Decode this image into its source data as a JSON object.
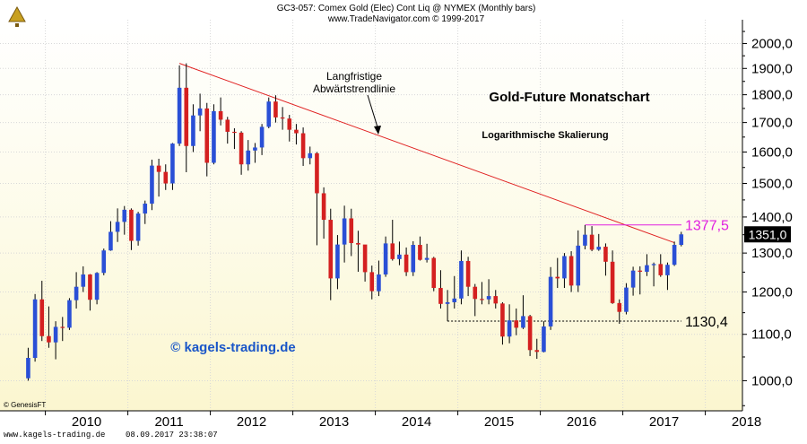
{
  "header": {
    "line1": "GC3-057:  Comex Gold (Elec) Cont Liq @ NYMEX  (Monthly bars)",
    "line2": "www.TradeNavigator.com © 1999-2017"
  },
  "footer": {
    "site": "www.kagels-trading.de",
    "timestamp": "08.09.2017 23:38:07",
    "source": "© GenesisFT"
  },
  "colors": {
    "up": "#2a4fd6",
    "down": "#d42020",
    "trendline": "#e02020",
    "marker_magenta": "#e020e0",
    "watermark": "#1a56c8"
  },
  "chart_data": {
    "type": "candlestick",
    "title": "Gold-Future Monatschart",
    "subtitle": "Logarithmische Skalierung",
    "watermark": "© kagels-trading.de",
    "y_scale": "log",
    "ylim": [
      940,
      2100
    ],
    "xlim": [
      2009.45,
      2018.45
    ],
    "x_ticks": [
      "2010",
      "2011",
      "2012",
      "2013",
      "2014",
      "2015",
      "2016",
      "2017",
      "2018"
    ],
    "y_ticks": [
      "2000,0",
      "1900,0",
      "1800,0",
      "1700,0",
      "1600,0",
      "1500,0",
      "1400,0",
      "1300,0",
      "1200,0",
      "1100,0",
      "1000,0"
    ],
    "last_price_label": "1351,0",
    "candles": [
      {
        "date": "2009-10",
        "o": 1005,
        "h": 1070,
        "l": 1000,
        "c": 1048
      },
      {
        "date": "2009-11",
        "o": 1048,
        "h": 1195,
        "l": 1040,
        "c": 1182
      },
      {
        "date": "2009-12",
        "o": 1182,
        "h": 1228,
        "l": 1085,
        "c": 1096
      },
      {
        "date": "2010-01",
        "o": 1096,
        "h": 1165,
        "l": 1070,
        "c": 1082
      },
      {
        "date": "2010-02",
        "o": 1082,
        "h": 1130,
        "l": 1045,
        "c": 1117
      },
      {
        "date": "2010-03",
        "o": 1117,
        "h": 1140,
        "l": 1085,
        "c": 1115
      },
      {
        "date": "2010-04",
        "o": 1115,
        "h": 1185,
        "l": 1110,
        "c": 1180
      },
      {
        "date": "2010-05",
        "o": 1180,
        "h": 1250,
        "l": 1160,
        "c": 1213
      },
      {
        "date": "2010-06",
        "o": 1213,
        "h": 1265,
        "l": 1200,
        "c": 1244
      },
      {
        "date": "2010-07",
        "o": 1244,
        "h": 1245,
        "l": 1155,
        "c": 1181
      },
      {
        "date": "2010-08",
        "o": 1181,
        "h": 1250,
        "l": 1170,
        "c": 1248
      },
      {
        "date": "2010-09",
        "o": 1248,
        "h": 1312,
        "l": 1242,
        "c": 1307
      },
      {
        "date": "2010-10",
        "o": 1307,
        "h": 1388,
        "l": 1306,
        "c": 1358
      },
      {
        "date": "2010-11",
        "o": 1358,
        "h": 1425,
        "l": 1330,
        "c": 1386
      },
      {
        "date": "2010-12",
        "o": 1386,
        "h": 1432,
        "l": 1350,
        "c": 1421
      },
      {
        "date": "2011-01",
        "o": 1421,
        "h": 1425,
        "l": 1308,
        "c": 1333
      },
      {
        "date": "2011-02",
        "o": 1333,
        "h": 1415,
        "l": 1320,
        "c": 1410
      },
      {
        "date": "2011-03",
        "o": 1410,
        "h": 1448,
        "l": 1380,
        "c": 1439
      },
      {
        "date": "2011-04",
        "o": 1439,
        "h": 1575,
        "l": 1420,
        "c": 1556
      },
      {
        "date": "2011-05",
        "o": 1556,
        "h": 1578,
        "l": 1460,
        "c": 1536
      },
      {
        "date": "2011-06",
        "o": 1536,
        "h": 1560,
        "l": 1480,
        "c": 1500
      },
      {
        "date": "2011-07",
        "o": 1500,
        "h": 1630,
        "l": 1480,
        "c": 1628
      },
      {
        "date": "2011-08",
        "o": 1628,
        "h": 1912,
        "l": 1620,
        "c": 1826
      },
      {
        "date": "2011-09",
        "o": 1826,
        "h": 1920,
        "l": 1535,
        "c": 1620
      },
      {
        "date": "2011-10",
        "o": 1620,
        "h": 1765,
        "l": 1600,
        "c": 1725
      },
      {
        "date": "2011-11",
        "o": 1725,
        "h": 1804,
        "l": 1670,
        "c": 1750
      },
      {
        "date": "2011-12",
        "o": 1750,
        "h": 1770,
        "l": 1522,
        "c": 1565
      },
      {
        "date": "2012-01",
        "o": 1565,
        "h": 1765,
        "l": 1560,
        "c": 1740
      },
      {
        "date": "2012-02",
        "o": 1740,
        "h": 1790,
        "l": 1690,
        "c": 1710
      },
      {
        "date": "2012-03",
        "o": 1710,
        "h": 1720,
        "l": 1628,
        "c": 1668
      },
      {
        "date": "2012-04",
        "o": 1668,
        "h": 1680,
        "l": 1610,
        "c": 1665
      },
      {
        "date": "2012-05",
        "o": 1665,
        "h": 1670,
        "l": 1527,
        "c": 1560
      },
      {
        "date": "2012-06",
        "o": 1560,
        "h": 1640,
        "l": 1540,
        "c": 1605
      },
      {
        "date": "2012-07",
        "o": 1605,
        "h": 1630,
        "l": 1565,
        "c": 1615
      },
      {
        "date": "2012-08",
        "o": 1615,
        "h": 1695,
        "l": 1590,
        "c": 1685
      },
      {
        "date": "2012-09",
        "o": 1685,
        "h": 1790,
        "l": 1680,
        "c": 1775
      },
      {
        "date": "2012-10",
        "o": 1775,
        "h": 1798,
        "l": 1700,
        "c": 1718
      },
      {
        "date": "2012-11",
        "o": 1718,
        "h": 1755,
        "l": 1675,
        "c": 1714
      },
      {
        "date": "2012-12",
        "o": 1714,
        "h": 1727,
        "l": 1635,
        "c": 1675
      },
      {
        "date": "2013-01",
        "o": 1675,
        "h": 1695,
        "l": 1625,
        "c": 1663
      },
      {
        "date": "2013-02",
        "o": 1663,
        "h": 1683,
        "l": 1555,
        "c": 1580
      },
      {
        "date": "2013-03",
        "o": 1580,
        "h": 1618,
        "l": 1560,
        "c": 1596
      },
      {
        "date": "2013-04",
        "o": 1596,
        "h": 1600,
        "l": 1321,
        "c": 1470
      },
      {
        "date": "2013-05",
        "o": 1470,
        "h": 1488,
        "l": 1339,
        "c": 1392
      },
      {
        "date": "2013-06",
        "o": 1392,
        "h": 1424,
        "l": 1180,
        "c": 1234
      },
      {
        "date": "2013-07",
        "o": 1234,
        "h": 1349,
        "l": 1207,
        "c": 1323
      },
      {
        "date": "2013-08",
        "o": 1323,
        "h": 1433,
        "l": 1275,
        "c": 1396
      },
      {
        "date": "2013-09",
        "o": 1396,
        "h": 1424,
        "l": 1292,
        "c": 1327
      },
      {
        "date": "2013-10",
        "o": 1327,
        "h": 1361,
        "l": 1251,
        "c": 1323
      },
      {
        "date": "2013-11",
        "o": 1323,
        "h": 1321,
        "l": 1226,
        "c": 1250
      },
      {
        "date": "2013-12",
        "o": 1250,
        "h": 1267,
        "l": 1182,
        "c": 1202
      },
      {
        "date": "2014-01",
        "o": 1202,
        "h": 1280,
        "l": 1190,
        "c": 1244
      },
      {
        "date": "2014-02",
        "o": 1244,
        "h": 1345,
        "l": 1238,
        "c": 1326
      },
      {
        "date": "2014-03",
        "o": 1326,
        "h": 1392,
        "l": 1280,
        "c": 1284
      },
      {
        "date": "2014-04",
        "o": 1284,
        "h": 1331,
        "l": 1268,
        "c": 1296
      },
      {
        "date": "2014-05",
        "o": 1296,
        "h": 1315,
        "l": 1240,
        "c": 1250
      },
      {
        "date": "2014-06",
        "o": 1250,
        "h": 1332,
        "l": 1240,
        "c": 1322
      },
      {
        "date": "2014-07",
        "o": 1322,
        "h": 1345,
        "l": 1280,
        "c": 1282
      },
      {
        "date": "2014-08",
        "o": 1282,
        "h": 1325,
        "l": 1275,
        "c": 1287
      },
      {
        "date": "2014-09",
        "o": 1287,
        "h": 1290,
        "l": 1202,
        "c": 1210
      },
      {
        "date": "2014-10",
        "o": 1210,
        "h": 1255,
        "l": 1160,
        "c": 1171
      },
      {
        "date": "2014-11",
        "o": 1171,
        "h": 1205,
        "l": 1130,
        "c": 1175
      },
      {
        "date": "2014-12",
        "o": 1175,
        "h": 1240,
        "l": 1160,
        "c": 1184
      },
      {
        "date": "2015-01",
        "o": 1184,
        "h": 1307,
        "l": 1170,
        "c": 1279
      },
      {
        "date": "2015-02",
        "o": 1279,
        "h": 1290,
        "l": 1190,
        "c": 1213
      },
      {
        "date": "2015-03",
        "o": 1213,
        "h": 1220,
        "l": 1142,
        "c": 1183
      },
      {
        "date": "2015-04",
        "o": 1183,
        "h": 1225,
        "l": 1170,
        "c": 1182
      },
      {
        "date": "2015-05",
        "o": 1182,
        "h": 1232,
        "l": 1170,
        "c": 1190
      },
      {
        "date": "2015-06",
        "o": 1190,
        "h": 1205,
        "l": 1160,
        "c": 1172
      },
      {
        "date": "2015-07",
        "o": 1172,
        "h": 1175,
        "l": 1077,
        "c": 1095
      },
      {
        "date": "2015-08",
        "o": 1095,
        "h": 1170,
        "l": 1080,
        "c": 1132
      },
      {
        "date": "2015-09",
        "o": 1132,
        "h": 1160,
        "l": 1098,
        "c": 1115
      },
      {
        "date": "2015-10",
        "o": 1115,
        "h": 1192,
        "l": 1112,
        "c": 1142
      },
      {
        "date": "2015-11",
        "o": 1142,
        "h": 1145,
        "l": 1052,
        "c": 1065
      },
      {
        "date": "2015-12",
        "o": 1065,
        "h": 1090,
        "l": 1046,
        "c": 1061
      },
      {
        "date": "2016-01",
        "o": 1061,
        "h": 1130,
        "l": 1060,
        "c": 1118
      },
      {
        "date": "2016-02",
        "o": 1118,
        "h": 1263,
        "l": 1110,
        "c": 1238
      },
      {
        "date": "2016-03",
        "o": 1238,
        "h": 1287,
        "l": 1210,
        "c": 1234
      },
      {
        "date": "2016-04",
        "o": 1234,
        "h": 1300,
        "l": 1210,
        "c": 1292
      },
      {
        "date": "2016-05",
        "o": 1292,
        "h": 1305,
        "l": 1200,
        "c": 1216
      },
      {
        "date": "2016-06",
        "o": 1216,
        "h": 1362,
        "l": 1200,
        "c": 1320
      },
      {
        "date": "2016-07",
        "o": 1320,
        "h": 1377,
        "l": 1310,
        "c": 1350
      },
      {
        "date": "2016-08",
        "o": 1350,
        "h": 1374,
        "l": 1305,
        "c": 1309
      },
      {
        "date": "2016-09",
        "o": 1309,
        "h": 1352,
        "l": 1306,
        "c": 1317
      },
      {
        "date": "2016-10",
        "o": 1317,
        "h": 1326,
        "l": 1241,
        "c": 1277
      },
      {
        "date": "2016-11",
        "o": 1277,
        "h": 1307,
        "l": 1171,
        "c": 1173
      },
      {
        "date": "2016-12",
        "o": 1173,
        "h": 1182,
        "l": 1124,
        "c": 1152
      },
      {
        "date": "2017-01",
        "o": 1152,
        "h": 1222,
        "l": 1146,
        "c": 1211
      },
      {
        "date": "2017-02",
        "o": 1211,
        "h": 1264,
        "l": 1191,
        "c": 1254
      },
      {
        "date": "2017-03",
        "o": 1254,
        "h": 1265,
        "l": 1194,
        "c": 1251
      },
      {
        "date": "2017-04",
        "o": 1251,
        "h": 1297,
        "l": 1240,
        "c": 1268
      },
      {
        "date": "2017-05",
        "o": 1268,
        "h": 1275,
        "l": 1214,
        "c": 1271
      },
      {
        "date": "2017-06",
        "o": 1271,
        "h": 1297,
        "l": 1238,
        "c": 1242
      },
      {
        "date": "2017-07",
        "o": 1242,
        "h": 1275,
        "l": 1205,
        "c": 1269
      },
      {
        "date": "2017-08",
        "o": 1269,
        "h": 1331,
        "l": 1266,
        "c": 1322
      },
      {
        "date": "2017-09",
        "o": 1322,
        "h": 1358,
        "l": 1318,
        "c": 1351
      }
    ],
    "trendline": {
      "label": "Langfristige Abwärtstrendlinie",
      "from": {
        "date": "2011-08",
        "value": 1920
      },
      "to": {
        "date": "2017-08",
        "value": 1328
      }
    },
    "horizontal_levels": [
      {
        "label": "1377,5",
        "value": 1377.5,
        "from": "2016-07",
        "to": "2018-03",
        "color": "#e020e0",
        "style": "solid"
      },
      {
        "label": "1130,4",
        "value": 1130.4,
        "from": "2014-11",
        "to": "2018-03",
        "color": "#000000",
        "style": "dotted"
      }
    ]
  }
}
